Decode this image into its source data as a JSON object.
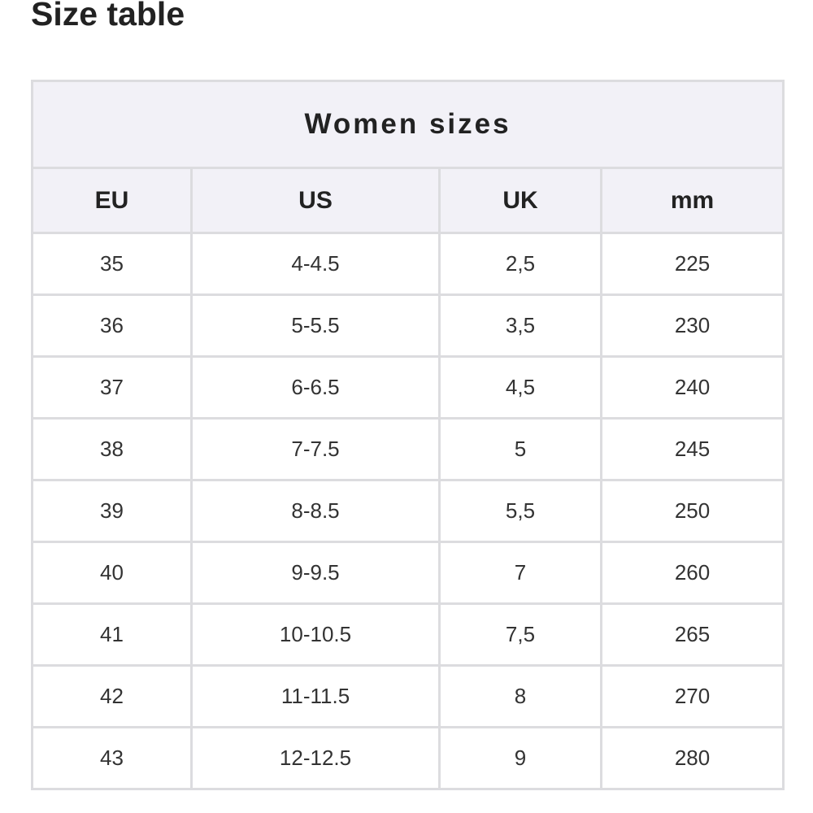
{
  "header": {
    "title": "Size table"
  },
  "table": {
    "caption": "Women sizes",
    "columns": [
      "EU",
      "US",
      "UK",
      "mm"
    ],
    "rows": [
      [
        "35",
        "4-4.5",
        "2,5",
        "225"
      ],
      [
        "36",
        "5-5.5",
        "3,5",
        "230"
      ],
      [
        "37",
        "6-6.5",
        "4,5",
        "240"
      ],
      [
        "38",
        "7-7.5",
        "5",
        "245"
      ],
      [
        "39",
        "8-8.5",
        "5,5",
        "250"
      ],
      [
        "40",
        "9-9.5",
        "7",
        "260"
      ],
      [
        "41",
        "10-10.5",
        "7,5",
        "265"
      ],
      [
        "42",
        "11-11.5",
        "8",
        "270"
      ],
      [
        "43",
        "12-12.5",
        "9",
        "280"
      ]
    ]
  }
}
